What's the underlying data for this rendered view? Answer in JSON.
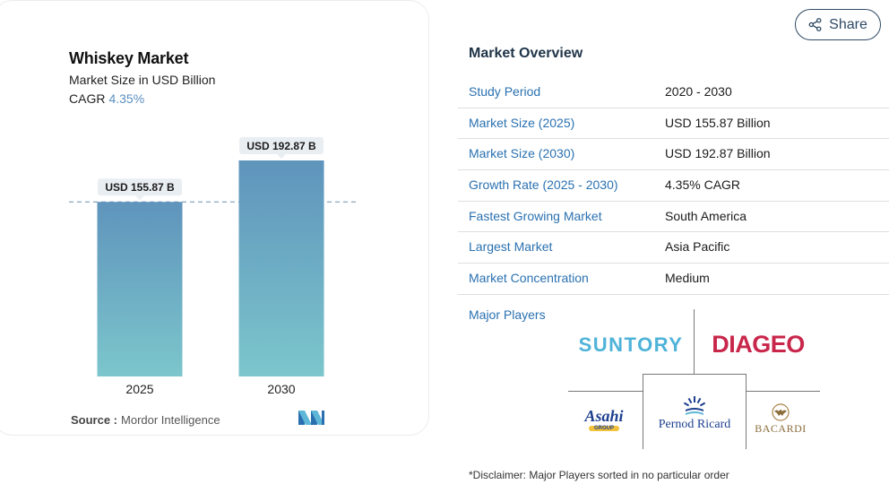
{
  "chart": {
    "title": "Whiskey Market",
    "subtitle": "Market Size in USD Billion",
    "cagr_label": "CAGR",
    "cagr_value": "4.35%",
    "source_label": "Source :",
    "source_value": "Mordor Intelligence",
    "colors": {
      "bar_top": "#5f94bc",
      "bar_bottom": "#7cc6cc",
      "label_bg": "#e9eef3",
      "reference_line": "#6f8fae"
    }
  },
  "chart_data": {
    "type": "bar",
    "categories": [
      "2025",
      "2030"
    ],
    "values": [
      155.87,
      192.87
    ],
    "data_labels": [
      "USD 155.87 B",
      "USD 192.87 B"
    ],
    "title": "Whiskey Market",
    "xlabel": "",
    "ylabel": "",
    "unit": "USD Billion",
    "grid": false,
    "legend": "none",
    "reference_line_at": 155.87
  },
  "share": {
    "label": "Share",
    "icon": "share-icon"
  },
  "overview": {
    "title": "Market Overview",
    "rows": [
      {
        "label": "Study Period",
        "value": "2020 - 2030"
      },
      {
        "label": "Market Size (2025)",
        "value": "USD 155.87 Billion"
      },
      {
        "label": "Market Size (2030)",
        "value": "USD 192.87 Billion"
      },
      {
        "label": "Growth Rate (2025 - 2030)",
        "value": "4.35% CAGR"
      },
      {
        "label": "Fastest Growing Market",
        "value": "South America"
      },
      {
        "label": "Largest Market",
        "value": "Asia Pacific"
      },
      {
        "label": "Market Concentration",
        "value": "Medium"
      }
    ]
  },
  "players": {
    "label": "Major Players",
    "logos": {
      "suntory": "SUNTORY",
      "diageo": "DIAGEO",
      "asahi": "Asahi",
      "asahi_group": "GROUP",
      "pernod": "Pernod Ricard",
      "bacardi": "BACARDI"
    }
  },
  "disclaimer": "*Disclaimer: Major Players sorted in no particular order"
}
